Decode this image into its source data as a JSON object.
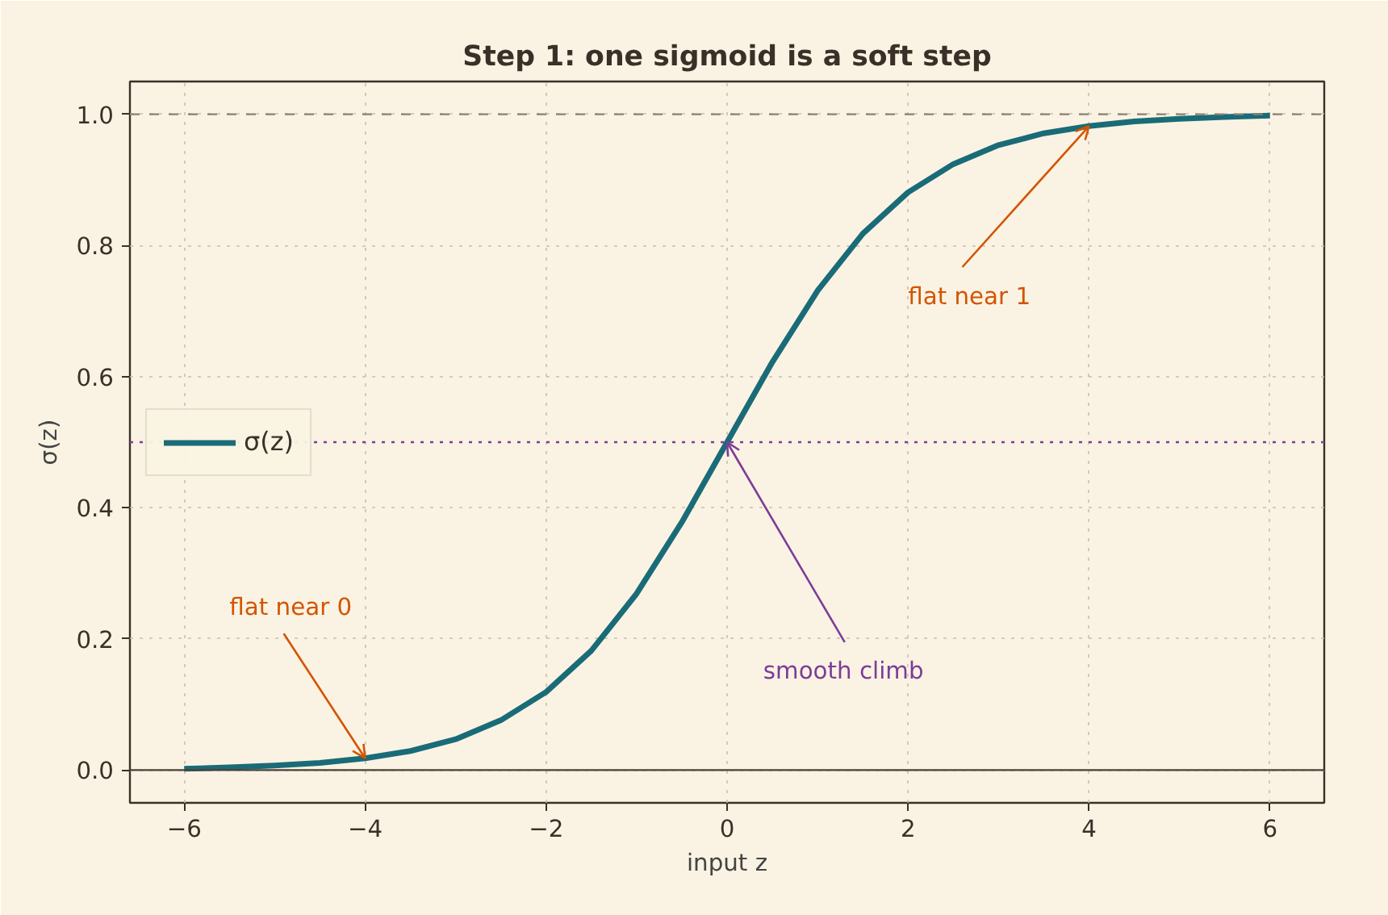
{
  "chart_data": {
    "type": "line",
    "title": "Step 1: one sigmoid is a soft step",
    "xlabel": "input z",
    "ylabel": "σ(z)",
    "x": [
      -6,
      -5.5,
      -5,
      -4.5,
      -4,
      -3.5,
      -3,
      -2.5,
      -2,
      -1.5,
      -1,
      -0.5,
      0,
      0.5,
      1,
      1.5,
      2,
      2.5,
      3,
      3.5,
      4,
      4.5,
      5,
      5.5,
      6
    ],
    "series": [
      {
        "name": "σ(z)",
        "color": "#1a6b78",
        "values": [
          0.002,
          0.004,
          0.007,
          0.011,
          0.018,
          0.029,
          0.047,
          0.076,
          0.119,
          0.182,
          0.269,
          0.378,
          0.5,
          0.622,
          0.731,
          0.818,
          0.881,
          0.924,
          0.953,
          0.971,
          0.982,
          0.989,
          0.993,
          0.996,
          0.998
        ]
      }
    ],
    "xlim": [
      -6.6,
      6.6
    ],
    "ylim": [
      -0.05,
      1.05
    ],
    "xticks": [
      {
        "value": -6,
        "label": "−6"
      },
      {
        "value": -4,
        "label": "−4"
      },
      {
        "value": -2,
        "label": "−2"
      },
      0,
      2,
      4,
      6
    ],
    "yticks": [
      {
        "value": 0,
        "label": "0.0"
      },
      {
        "value": 0.2,
        "label": "0.2"
      },
      {
        "value": 0.4,
        "label": "0.4"
      },
      {
        "value": 0.6,
        "label": "0.6"
      },
      {
        "value": 0.8,
        "label": "0.8"
      },
      {
        "value": 1,
        "label": "1.0"
      }
    ],
    "ref_lines": [
      {
        "axis": "y",
        "value": 1,
        "color": "#8a8074",
        "line_style": "dashed"
      },
      {
        "axis": "y",
        "value": 0.5,
        "color": "#7d3c98",
        "line_style": "dotted"
      },
      {
        "axis": "y",
        "value": 0,
        "color": "#4a4038",
        "line_style": "solid"
      }
    ],
    "annotations": [
      {
        "text": "flat near 0",
        "x": -4,
        "y": 0.018
      },
      {
        "text": "smooth climb",
        "x": 0,
        "y": 0.5
      },
      {
        "text": "flat near 1",
        "x": 4,
        "y": 0.982
      }
    ],
    "grid": true,
    "legend": "left",
    "line_style": "solid",
    "marker": "none"
  }
}
